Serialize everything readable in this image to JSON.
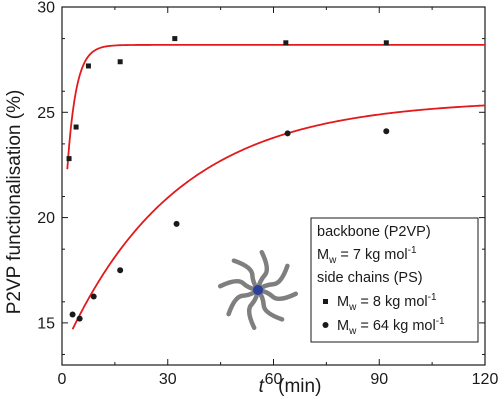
{
  "chart_data": {
    "type": "scatter",
    "xlabel_var": "t",
    "xlabel_unit": "(min)",
    "ylabel": "P2VP functionalisation (%)",
    "xlim": [
      0,
      120
    ],
    "ylim": [
      13,
      30
    ],
    "xticks": [
      0,
      30,
      60,
      90,
      120
    ],
    "yticks": [
      15,
      20,
      25,
      30
    ],
    "grid": false,
    "legend_position": "bottom-right",
    "legend": {
      "line1": "backbone (P2VP)",
      "line2_main": "M",
      "line2_sub": "w",
      "line2_rest": " = 7 kg mol",
      "line2_sup": "-1",
      "line3": "side chains (PS)"
    },
    "fit_color": "#e31a1c",
    "marker_color": "#1a1a1a",
    "illustration_core_color": "#2b3f9e",
    "illustration_arm_color": "#7f7f7f",
    "series": [
      {
        "name_main": "M",
        "name_sub": "w",
        "name_rest": " = 8 kg mol",
        "name_sup": "-1",
        "marker": "square",
        "x": [
          2,
          4,
          7.5,
          16.5,
          32,
          63.5,
          92
        ],
        "y": [
          22.8,
          24.3,
          27.2,
          27.4,
          28.5,
          28.3,
          28.3
        ],
        "fit": {
          "plateau": 28.2,
          "y0": 22.3,
          "k": 0.4,
          "x_start": 1.5
        }
      },
      {
        "name_main": "M",
        "name_sub": "w",
        "name_rest": " = 64 kg mol",
        "name_sup": "-1",
        "marker": "circle",
        "x": [
          3,
          5,
          9,
          16.5,
          32.5,
          64,
          92
        ],
        "y": [
          15.4,
          15.2,
          16.25,
          17.5,
          19.7,
          24.0,
          24.1
        ],
        "fit": {
          "plateau": 25.6,
          "y0": 14.7,
          "k": 0.0315,
          "x_start": 3
        }
      }
    ]
  }
}
